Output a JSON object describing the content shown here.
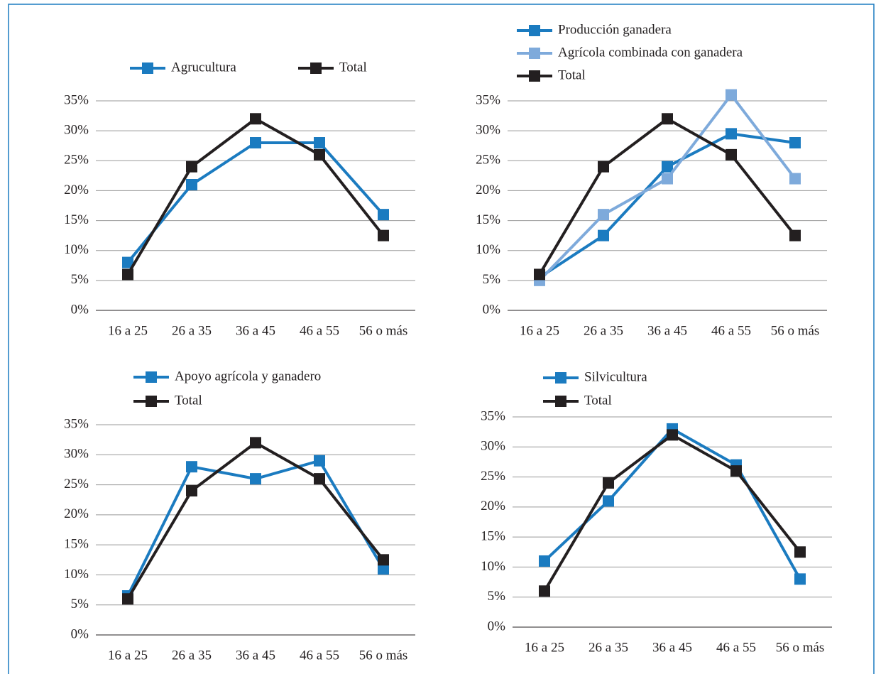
{
  "chart_data": [
    {
      "type": "line",
      "categories": [
        "16 a 25",
        "26 a 35",
        "36 a 45",
        "46 a 55",
        "56 o más"
      ],
      "ylim": [
        0,
        35
      ],
      "yticks": [
        {
          "value": 0,
          "label": "0%"
        },
        {
          "value": 5,
          "label": "5%"
        },
        {
          "value": 10,
          "label": "10%"
        },
        {
          "value": 15,
          "label": "15%"
        },
        {
          "value": 20,
          "label": "20%"
        },
        {
          "value": 25,
          "label": "25%"
        },
        {
          "value": 30,
          "label": "30%"
        },
        {
          "value": 35,
          "label": "35%"
        }
      ],
      "grid": true,
      "series": [
        {
          "name": "Agrucultura",
          "color": "#1b7bc0",
          "values": [
            8,
            21,
            28,
            28,
            16
          ]
        },
        {
          "name": "Total",
          "color": "#231f20",
          "values": [
            6,
            24,
            32,
            26,
            12.5
          ]
        }
      ]
    },
    {
      "type": "line",
      "categories": [
        "16 a 25",
        "26 a 35",
        "36 a 45",
        "46 a 55",
        "56 o más"
      ],
      "ylim": [
        0,
        35
      ],
      "yticks": [
        {
          "value": 0,
          "label": "0%"
        },
        {
          "value": 5,
          "label": "5%"
        },
        {
          "value": 10,
          "label": "10%"
        },
        {
          "value": 15,
          "label": "15%"
        },
        {
          "value": 20,
          "label": "20%"
        },
        {
          "value": 25,
          "label": "25%"
        },
        {
          "value": 30,
          "label": "30%"
        },
        {
          "value": 35,
          "label": "35%"
        }
      ],
      "grid": true,
      "series": [
        {
          "name": "Producción ganadera",
          "color": "#1b7bc0",
          "values": [
            5.5,
            12.5,
            24,
            29.5,
            28
          ]
        },
        {
          "name": "Agrícola combinada con ganadera",
          "color": "#7eaadb",
          "values": [
            5,
            16,
            22,
            36,
            22
          ]
        },
        {
          "name": "Total",
          "color": "#231f20",
          "values": [
            6,
            24,
            32,
            26,
            12.5
          ]
        }
      ]
    },
    {
      "type": "line",
      "categories": [
        "16 a 25",
        "26 a 35",
        "36 a 45",
        "46 a 55",
        "56 o más"
      ],
      "ylim": [
        0,
        35
      ],
      "yticks": [
        {
          "value": 0,
          "label": "0%"
        },
        {
          "value": 5,
          "label": "5%"
        },
        {
          "value": 10,
          "label": "10%"
        },
        {
          "value": 15,
          "label": "15%"
        },
        {
          "value": 20,
          "label": "20%"
        },
        {
          "value": 25,
          "label": "25%"
        },
        {
          "value": 30,
          "label": "30%"
        },
        {
          "value": 35,
          "label": "35%"
        }
      ],
      "grid": true,
      "series": [
        {
          "name": "Apoyo agrícola y ganadero",
          "color": "#1b7bc0",
          "values": [
            6.5,
            28,
            26,
            29,
            11
          ]
        },
        {
          "name": "Total",
          "color": "#231f20",
          "values": [
            6,
            24,
            32,
            26,
            12.5
          ]
        }
      ]
    },
    {
      "type": "line",
      "categories": [
        "16 a 25",
        "26 a 35",
        "36 a 45",
        "46 a 55",
        "56 o más"
      ],
      "ylim": [
        0,
        35
      ],
      "yticks": [
        {
          "value": 0,
          "label": "0%"
        },
        {
          "value": 5,
          "label": "5%"
        },
        {
          "value": 10,
          "label": "10%"
        },
        {
          "value": 15,
          "label": "15%"
        },
        {
          "value": 20,
          "label": "20%"
        },
        {
          "value": 25,
          "label": "25%"
        },
        {
          "value": 30,
          "label": "30%"
        },
        {
          "value": 35,
          "label": "35%"
        }
      ],
      "grid": true,
      "series": [
        {
          "name": "Silvicultura",
          "color": "#1b7bc0",
          "values": [
            11,
            21,
            33,
            27,
            8
          ]
        },
        {
          "name": "Total",
          "color": "#231f20",
          "values": [
            6,
            24,
            32,
            26,
            12.5
          ]
        }
      ]
    }
  ]
}
